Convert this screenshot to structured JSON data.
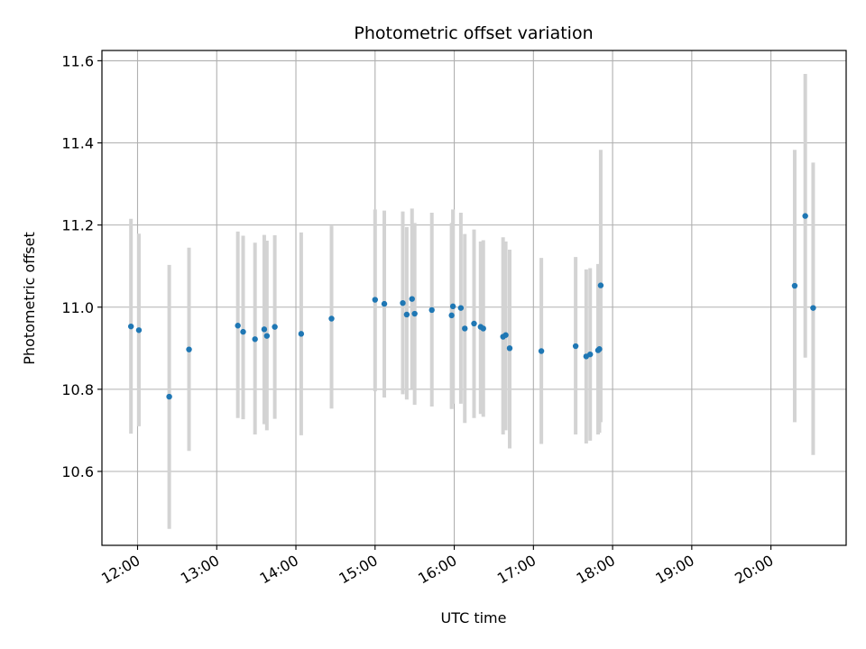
{
  "chart_data": {
    "type": "scatter",
    "title": "Photometric offset variation",
    "xlabel": "UTC time",
    "ylabel": "Photometric offset",
    "grid": true,
    "xlim": [
      "11:33",
      "20:57"
    ],
    "ylim": [
      10.42,
      11.625
    ],
    "x_ticks": [
      "12:00",
      "13:00",
      "14:00",
      "15:00",
      "16:00",
      "17:00",
      "18:00",
      "19:00",
      "20:00"
    ],
    "y_ticks": [
      "10.6",
      "10.8",
      "11.0",
      "11.2",
      "11.4",
      "11.6"
    ],
    "colors": {
      "points": "#1f77b4",
      "error_bars": "#d3d3d3",
      "grid": "#b0b0b0"
    },
    "points": [
      {
        "x": "11:55",
        "y": 10.953,
        "ylow": 10.692,
        "yhigh": 11.215
      },
      {
        "x": "12:01",
        "y": 10.944,
        "ylow": 10.71,
        "yhigh": 11.179
      },
      {
        "x": "12:24",
        "y": 10.782,
        "ylow": 10.46,
        "yhigh": 11.103
      },
      {
        "x": "12:39",
        "y": 10.897,
        "ylow": 10.65,
        "yhigh": 11.145
      },
      {
        "x": "13:16",
        "y": 10.955,
        "ylow": 10.73,
        "yhigh": 11.184
      },
      {
        "x": "13:20",
        "y": 10.94,
        "ylow": 10.727,
        "yhigh": 11.174
      },
      {
        "x": "13:29",
        "y": 10.922,
        "ylow": 10.69,
        "yhigh": 11.157
      },
      {
        "x": "13:36",
        "y": 10.946,
        "ylow": 10.715,
        "yhigh": 11.176
      },
      {
        "x": "13:38",
        "y": 10.93,
        "ylow": 10.7,
        "yhigh": 11.162
      },
      {
        "x": "13:44",
        "y": 10.952,
        "ylow": 10.728,
        "yhigh": 11.175
      },
      {
        "x": "14:04",
        "y": 10.935,
        "ylow": 10.688,
        "yhigh": 11.182
      },
      {
        "x": "14:27",
        "y": 10.972,
        "ylow": 10.753,
        "yhigh": 11.198
      },
      {
        "x": "15:00",
        "y": 11.018,
        "ylow": 10.795,
        "yhigh": 11.238
      },
      {
        "x": "15:07",
        "y": 11.008,
        "ylow": 10.78,
        "yhigh": 11.235
      },
      {
        "x": "15:21",
        "y": 11.01,
        "ylow": 10.788,
        "yhigh": 11.233
      },
      {
        "x": "15:24",
        "y": 10.982,
        "ylow": 10.775,
        "yhigh": 11.195
      },
      {
        "x": "15:28",
        "y": 11.02,
        "ylow": 10.8,
        "yhigh": 11.24
      },
      {
        "x": "15:30",
        "y": 10.984,
        "ylow": 10.762,
        "yhigh": 11.205
      },
      {
        "x": "15:43",
        "y": 10.993,
        "ylow": 10.758,
        "yhigh": 11.23
      },
      {
        "x": "15:58",
        "y": 10.98,
        "ylow": 10.752,
        "yhigh": 11.205
      },
      {
        "x": "15:59",
        "y": 11.002,
        "ylow": 10.765,
        "yhigh": 11.238
      },
      {
        "x": "16:05",
        "y": 10.998,
        "ylow": 10.765,
        "yhigh": 11.23
      },
      {
        "x": "16:08",
        "y": 10.948,
        "ylow": 10.718,
        "yhigh": 11.178
      },
      {
        "x": "16:15",
        "y": 10.96,
        "ylow": 10.73,
        "yhigh": 11.189
      },
      {
        "x": "16:20",
        "y": 10.952,
        "ylow": 10.74,
        "yhigh": 11.16
      },
      {
        "x": "16:22",
        "y": 10.948,
        "ylow": 10.733,
        "yhigh": 11.163
      },
      {
        "x": "16:37",
        "y": 10.928,
        "ylow": 10.69,
        "yhigh": 11.17
      },
      {
        "x": "16:39",
        "y": 10.932,
        "ylow": 10.7,
        "yhigh": 11.16
      },
      {
        "x": "16:42",
        "y": 10.9,
        "ylow": 10.656,
        "yhigh": 11.14
      },
      {
        "x": "17:06",
        "y": 10.893,
        "ylow": 10.667,
        "yhigh": 11.12
      },
      {
        "x": "17:32",
        "y": 10.905,
        "ylow": 10.69,
        "yhigh": 11.122
      },
      {
        "x": "17:40",
        "y": 10.88,
        "ylow": 10.668,
        "yhigh": 11.092
      },
      {
        "x": "17:43",
        "y": 10.885,
        "ylow": 10.675,
        "yhigh": 11.095
      },
      {
        "x": "17:49",
        "y": 10.895,
        "ylow": 10.69,
        "yhigh": 11.105
      },
      {
        "x": "17:50",
        "y": 10.898,
        "ylow": 10.694,
        "yhigh": 11.102
      },
      {
        "x": "17:51",
        "y": 11.053,
        "ylow": 10.72,
        "yhigh": 11.383
      },
      {
        "x": "20:18",
        "y": 11.052,
        "ylow": 10.72,
        "yhigh": 11.383
      },
      {
        "x": "20:26",
        "y": 11.222,
        "ylow": 10.877,
        "yhigh": 11.568
      },
      {
        "x": "20:32",
        "y": 10.998,
        "ylow": 10.64,
        "yhigh": 11.352
      }
    ]
  }
}
